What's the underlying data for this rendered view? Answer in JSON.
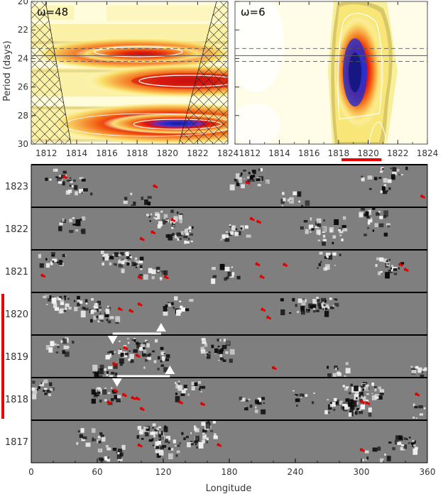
{
  "chart_data": [
    {
      "type": "heatmap",
      "panel": "left",
      "title": "ω=48",
      "ylabel": "Period (days)",
      "xlabel": "",
      "xlim": [
        1811,
        1824
      ],
      "ylim": [
        20,
        30
      ],
      "y_inverted": true,
      "xticks": [
        "1812",
        "1814",
        "1816",
        "1818",
        "1820",
        "1822",
        "1824"
      ],
      "yticks": [
        "20",
        "22",
        "24",
        "26",
        "28",
        "30"
      ],
      "reference_period_solid": 23.8,
      "reference_period_dashed": [
        23.3,
        24.2
      ],
      "bands": [
        {
          "period": 23.8,
          "x_start": 1813.5,
          "x_end": 1820.5,
          "peak": "red"
        },
        {
          "period": 25.6,
          "x_start": 1816.5,
          "x_end": 1823.5,
          "peak": "red"
        },
        {
          "period": 28.6,
          "x_start": 1813.5,
          "x_end": 1824,
          "peak": "blue"
        }
      ],
      "cone_of_influence": "hatched at both edges"
    },
    {
      "type": "heatmap",
      "panel": "right",
      "title": "ω=6",
      "xlim": [
        1811,
        1824
      ],
      "ylim": [
        20,
        30
      ],
      "y_inverted": true,
      "xticks": [
        "1812",
        "1814",
        "1816",
        "1818",
        "1820",
        "1822",
        "1824"
      ],
      "reference_period_solid": 23.8,
      "reference_period_dashed": [
        23.3,
        24.2
      ],
      "peak": {
        "x_center": 1819.3,
        "x_start": 1818.2,
        "x_end": 1820.6,
        "period_center": 25.3
      },
      "highlight_interval": [
        1818.2,
        1820.9
      ]
    },
    {
      "type": "heatmap",
      "panel": "bottom",
      "xlabel": "Longitude",
      "xlim": [
        0,
        360
      ],
      "xticks": [
        "0",
        "60",
        "120",
        "180",
        "240",
        "300",
        "360"
      ],
      "rows": [
        "1823",
        "1822",
        "1821",
        "1820",
        "1819",
        "1818",
        "1817"
      ],
      "highlight_rows": [
        "1820",
        "1819",
        "1818"
      ],
      "arrow_markers": [
        {
          "row": "1819",
          "down_lon": 74,
          "up_lon": 118
        },
        {
          "row": "1818",
          "down_lon": 78,
          "up_lon": 126
        }
      ],
      "red_markers": [
        {
          "row": "1823",
          "lons": [
            30,
            112,
            196,
            355
          ]
        },
        {
          "row": "1822",
          "lons": [
            100,
            110,
            128,
            200,
            206
          ]
        },
        {
          "row": "1821",
          "lons": [
            10,
            98,
            122,
            205,
            209,
            230,
            335,
            340
          ]
        },
        {
          "row": "1820",
          "lons": [
            80,
            90,
            98,
            210,
            215
          ]
        },
        {
          "row": "1819",
          "lons": [
            75,
            85,
            96,
            220
          ]
        },
        {
          "row": "1818",
          "lons": [
            70,
            76,
            84,
            92,
            96,
            100,
            135,
            155,
            300,
            305,
            350
          ]
        },
        {
          "row": "1817",
          "lons": [
            98,
            170,
            300
          ]
        }
      ]
    }
  ]
}
